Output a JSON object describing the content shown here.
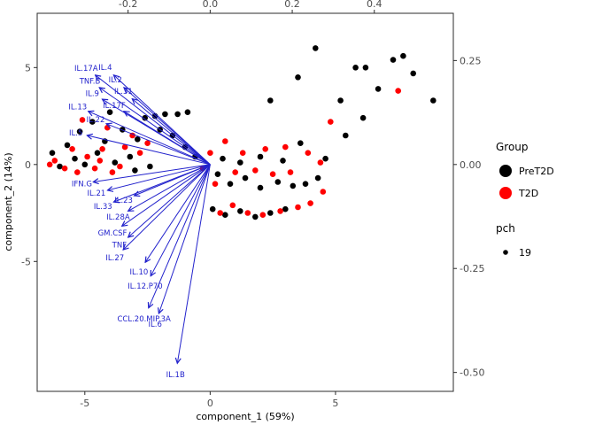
{
  "chart_data": {
    "type": "scatter",
    "subtype": "pca_biplot",
    "title": "",
    "xlabel": "component_1  (59%)",
    "ylabel": "component_2  (14%)",
    "grid": false,
    "primary_axis": {
      "xlim": [
        -6.9,
        9.7
      ],
      "ylim": [
        -11.7,
        7.8
      ],
      "x_ticks": [
        {
          "v": -5,
          "t": "-5"
        },
        {
          "v": 0,
          "t": "0"
        },
        {
          "v": 5,
          "t": "5"
        }
      ],
      "y_ticks": [
        {
          "v": -5,
          "t": "-5"
        },
        {
          "v": 0,
          "t": "0"
        },
        {
          "v": 5,
          "t": "5"
        }
      ]
    },
    "secondary_axis": {
      "x_scale": 16.37,
      "y_scale": 21.45,
      "x_ticks": [
        {
          "v": -0.2,
          "t": "-0.2"
        },
        {
          "v": 0,
          "t": "0.0"
        },
        {
          "v": 0.2,
          "t": "0.2"
        },
        {
          "v": 0.4,
          "t": "0.4"
        }
      ],
      "y_ticks": [
        {
          "v": 0.25,
          "t": "0.25"
        },
        {
          "v": 0,
          "t": "0.00"
        },
        {
          "v": -0.25,
          "t": "-0.25"
        },
        {
          "v": -0.5,
          "t": "-0.50"
        }
      ]
    },
    "series": [
      {
        "name": "PreT2D",
        "color": "#000000",
        "points": [
          [
            -6.3,
            0.6
          ],
          [
            -6.0,
            -0.1
          ],
          [
            -5.7,
            1.0
          ],
          [
            -5.4,
            0.3
          ],
          [
            -5.2,
            1.7
          ],
          [
            -5.0,
            0.0
          ],
          [
            -4.7,
            2.2
          ],
          [
            -4.5,
            0.6
          ],
          [
            -4.2,
            1.2
          ],
          [
            -4.0,
            2.7
          ],
          [
            -3.8,
            0.1
          ],
          [
            -3.5,
            1.8
          ],
          [
            -3.2,
            0.4
          ],
          [
            -2.9,
            1.3
          ],
          [
            -2.6,
            2.4
          ],
          [
            -2.2,
            2.5
          ],
          [
            -1.8,
            2.6
          ],
          [
            -1.3,
            2.6
          ],
          [
            -0.9,
            2.7
          ],
          [
            -2.0,
            1.8
          ],
          [
            -1.5,
            1.5
          ],
          [
            -1.0,
            0.9
          ],
          [
            -0.6,
            0.4
          ],
          [
            -3.0,
            -0.3
          ],
          [
            -2.4,
            -0.1
          ],
          [
            0.3,
            -0.5
          ],
          [
            0.8,
            -1.0
          ],
          [
            1.4,
            -0.7
          ],
          [
            2.0,
            -1.2
          ],
          [
            2.7,
            -0.9
          ],
          [
            3.3,
            -1.1
          ],
          [
            0.1,
            -2.3
          ],
          [
            0.6,
            -2.6
          ],
          [
            1.2,
            -2.4
          ],
          [
            1.8,
            -2.7
          ],
          [
            2.4,
            -2.5
          ],
          [
            3.0,
            -2.3
          ],
          [
            3.8,
            -1.0
          ],
          [
            4.3,
            -0.7
          ],
          [
            0.5,
            0.3
          ],
          [
            1.2,
            0.1
          ],
          [
            2.0,
            0.4
          ],
          [
            2.9,
            0.2
          ],
          [
            3.6,
            1.1
          ],
          [
            4.6,
            0.3
          ],
          [
            3.5,
            4.5
          ],
          [
            4.2,
            6.0
          ],
          [
            5.8,
            5.0
          ],
          [
            6.2,
            5.0
          ],
          [
            7.7,
            5.6
          ],
          [
            8.1,
            4.7
          ],
          [
            5.2,
            3.3
          ],
          [
            6.1,
            2.4
          ],
          [
            7.3,
            5.4
          ],
          [
            8.9,
            3.3
          ],
          [
            6.7,
            3.9
          ],
          [
            2.4,
            3.3
          ],
          [
            5.4,
            1.5
          ]
        ]
      },
      {
        "name": "T2D",
        "color": "#FF0000",
        "points": [
          [
            -6.2,
            0.2
          ],
          [
            -5.8,
            -0.2
          ],
          [
            -5.5,
            0.8
          ],
          [
            -5.3,
            -0.4
          ],
          [
            -4.9,
            0.4
          ],
          [
            -4.6,
            -0.2
          ],
          [
            -4.3,
            0.8
          ],
          [
            -3.9,
            -0.4
          ],
          [
            -5.1,
            2.3
          ],
          [
            -4.1,
            1.9
          ],
          [
            -3.4,
            0.9
          ],
          [
            -3.1,
            1.5
          ],
          [
            -2.8,
            0.6
          ],
          [
            -2.5,
            1.1
          ],
          [
            -6.4,
            0.0
          ],
          [
            -4.4,
            0.2
          ],
          [
            -3.6,
            -0.1
          ],
          [
            0.4,
            -2.5
          ],
          [
            0.9,
            -2.1
          ],
          [
            1.5,
            -2.5
          ],
          [
            2.1,
            -2.6
          ],
          [
            2.8,
            -2.4
          ],
          [
            3.5,
            -2.2
          ],
          [
            0.2,
            -1.0
          ],
          [
            1.0,
            -0.4
          ],
          [
            1.8,
            -0.3
          ],
          [
            2.5,
            -0.5
          ],
          [
            3.2,
            -0.4
          ],
          [
            4.0,
            -2.0
          ],
          [
            4.5,
            -1.4
          ],
          [
            1.3,
            0.6
          ],
          [
            2.2,
            0.8
          ],
          [
            3.0,
            0.9
          ],
          [
            3.9,
            0.6
          ],
          [
            4.4,
            0.1
          ],
          [
            0.0,
            0.6
          ],
          [
            -0.3,
            -0.2
          ],
          [
            7.5,
            3.8
          ],
          [
            4.8,
            2.2
          ],
          [
            0.6,
            1.2
          ]
        ]
      }
    ],
    "loadings": {
      "color": "#2222cc",
      "arrows": [
        {
          "label": "IL.17A",
          "x": -0.28,
          "y": 0.215
        },
        {
          "label": "IL.4",
          "x": -0.235,
          "y": 0.215
        },
        {
          "label": "TNF.B",
          "x": -0.27,
          "y": 0.185
        },
        {
          "label": "IL.2",
          "x": -0.21,
          "y": 0.185
        },
        {
          "label": "IL.9",
          "x": -0.263,
          "y": 0.157
        },
        {
          "label": "IL.31",
          "x": -0.19,
          "y": 0.158
        },
        {
          "label": "IL.13",
          "x": -0.297,
          "y": 0.128
        },
        {
          "label": "IL.17F",
          "x": -0.21,
          "y": 0.128
        },
        {
          "label": "IL.22",
          "x": -0.253,
          "y": 0.098
        },
        {
          "label": "IL.5",
          "x": -0.3,
          "y": 0.07
        },
        {
          "label": "IFN.G",
          "x": -0.285,
          "y": -0.042
        },
        {
          "label": "IL.21",
          "x": -0.25,
          "y": -0.062
        },
        {
          "label": "IL.23",
          "x": -0.185,
          "y": -0.075
        },
        {
          "label": "IL.33",
          "x": -0.235,
          "y": -0.09
        },
        {
          "label": "IL.28A",
          "x": -0.2,
          "y": -0.112
        },
        {
          "label": "GM.CSF",
          "x": -0.215,
          "y": -0.148
        },
        {
          "label": "TNF",
          "x": -0.2,
          "y": -0.175
        },
        {
          "label": "IL.27",
          "x": -0.212,
          "y": -0.205
        },
        {
          "label": "IL.10",
          "x": -0.158,
          "y": -0.235
        },
        {
          "label": "IL.12.P70",
          "x": -0.145,
          "y": -0.268
        },
        {
          "label": "CCL.20.MIP.3A",
          "x": -0.15,
          "y": -0.345
        },
        {
          "label": "IL.6",
          "x": -0.125,
          "y": -0.358
        },
        {
          "label": "IL.1B",
          "x": -0.08,
          "y": -0.478
        }
      ]
    },
    "legend": {
      "position": "right",
      "group_title": "Group",
      "entries": [
        {
          "label": "PreT2D",
          "color": "#000000"
        },
        {
          "label": "T2D",
          "color": "#FF0000"
        }
      ],
      "pch_title": "pch",
      "pch_entries": [
        {
          "label": "19",
          "color": "#000000"
        }
      ]
    }
  }
}
